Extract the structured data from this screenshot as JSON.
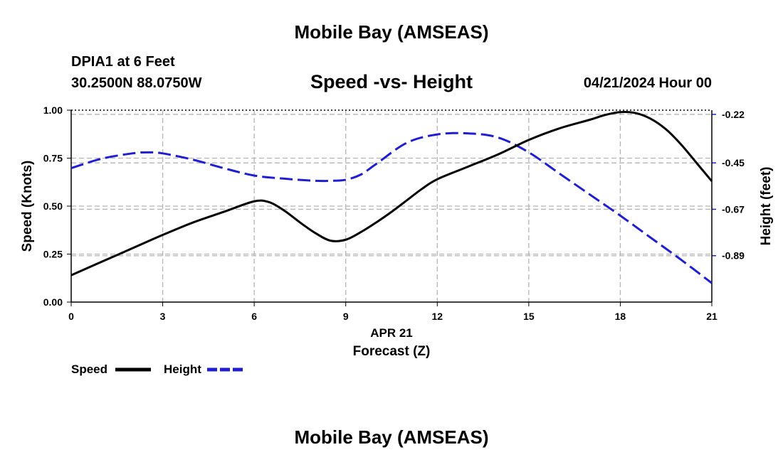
{
  "header": {
    "title": "Mobile Bay (AMSEAS)",
    "station": "DPIA1 at 6 Feet",
    "coords": "30.2500N  88.0750W",
    "chart_title": "Speed -vs- Height",
    "date": "04/21/2024 Hour 00"
  },
  "footer": {
    "title": "Mobile Bay (AMSEAS)"
  },
  "legend": {
    "speed": "Speed",
    "height": "Height"
  },
  "colors": {
    "speed": "#000000",
    "height": "#1f1fd0",
    "grid": "#b4b4b4"
  },
  "chart_data": {
    "type": "line",
    "title": "Speed -vs- Height",
    "xlabel": "Forecast (Z)",
    "xsublabel": "APR 21",
    "ylabel_left": "Speed (Knots)",
    "ylabel_right": "Height (feet)",
    "x_ticks": [
      "0",
      "3",
      "6",
      "9",
      "12",
      "15",
      "18",
      "21"
    ],
    "y_left_ticks": [
      "0.00",
      "0.25",
      "0.50",
      "0.75",
      "1.00"
    ],
    "y_right_ticks": [
      "-0.22",
      "-0.45",
      "-0.67",
      "-0.89"
    ],
    "xlim": [
      0,
      21
    ],
    "ylim_left": [
      0,
      1
    ],
    "ylim_right": [
      -1.11,
      -0.2
    ],
    "series": [
      {
        "name": "Speed",
        "axis": "left",
        "style": "solid",
        "x": [
          0,
          1,
          2,
          3,
          4,
          5,
          6,
          6.5,
          7,
          7.5,
          8,
          8.5,
          9,
          9.5,
          10,
          10.5,
          11,
          11.5,
          12,
          13,
          14,
          15,
          16,
          17,
          17.5,
          18,
          18.5,
          19,
          19.5,
          20,
          20.5,
          21
        ],
        "y": [
          0.14,
          0.21,
          0.28,
          0.35,
          0.415,
          0.47,
          0.525,
          0.52,
          0.475,
          0.415,
          0.36,
          0.32,
          0.325,
          0.365,
          0.415,
          0.47,
          0.53,
          0.59,
          0.64,
          0.705,
          0.77,
          0.845,
          0.905,
          0.95,
          0.975,
          0.99,
          0.985,
          0.955,
          0.9,
          0.82,
          0.725,
          0.63
        ]
      },
      {
        "name": "Height",
        "axis": "right",
        "style": "dashed",
        "x": [
          0,
          1,
          2,
          2.5,
          3,
          4,
          5,
          6,
          7,
          8,
          8.5,
          9,
          9.5,
          10,
          11,
          12,
          13,
          14,
          15,
          16,
          17,
          18,
          19,
          20,
          21
        ],
        "y": [
          -0.475,
          -0.43,
          -0.405,
          -0.4,
          -0.405,
          -0.435,
          -0.475,
          -0.51,
          -0.525,
          -0.535,
          -0.535,
          -0.53,
          -0.505,
          -0.455,
          -0.355,
          -0.315,
          -0.31,
          -0.33,
          -0.4,
          -0.5,
          -0.6,
          -0.7,
          -0.805,
          -0.91,
          -1.02
        ]
      }
    ]
  }
}
